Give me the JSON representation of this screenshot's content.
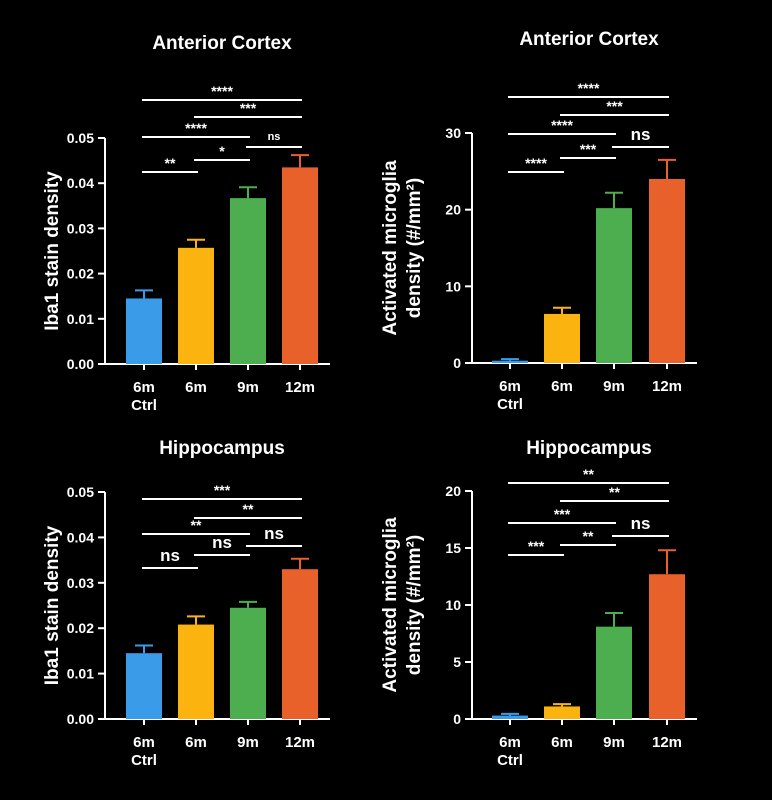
{
  "colors": {
    "ctrl": "#3a9be8",
    "m6": "#fbb40f",
    "m9": "#4cae4f",
    "m12": "#e8602a"
  },
  "chart_data": [
    {
      "type": "bar",
      "title": "Anterior Cortex",
      "ylabel": [
        "Iba1 stain density"
      ],
      "categories": [
        [
          "6m",
          "Ctrl"
        ],
        [
          "6m"
        ],
        [
          "9m"
        ],
        [
          "12m"
        ]
      ],
      "values": [
        0.0145,
        0.0257,
        0.0367,
        0.0435
      ],
      "errors": [
        0.0018,
        0.0018,
        0.0024,
        0.0027
      ],
      "ylim": [
        0,
        0.05
      ],
      "yticks": [
        0.0,
        0.01,
        0.02,
        0.03,
        0.04,
        0.05
      ],
      "ytick_labels": [
        "0.00",
        "0.01",
        "0.02",
        "0.03",
        "0.04",
        "0.05"
      ],
      "significance": [
        {
          "from": 0,
          "to": 1,
          "label": "**"
        },
        {
          "from": 1,
          "to": 2,
          "label": "*"
        },
        {
          "from": 2,
          "to": 3,
          "label": "ns"
        },
        {
          "from": 0,
          "to": 2,
          "label": "****"
        },
        {
          "from": 1,
          "to": 3,
          "label": "***"
        },
        {
          "from": 0,
          "to": 3,
          "label": "****"
        }
      ]
    },
    {
      "type": "bar",
      "title": "Anterior Cortex",
      "ylabel": [
        "Activated microglia",
        "density (#/mm²)"
      ],
      "categories": [
        [
          "6m",
          "Ctrl"
        ],
        [
          "6m"
        ],
        [
          "9m"
        ],
        [
          "12m"
        ]
      ],
      "values": [
        0.3,
        6.4,
        20.2,
        24.0
      ],
      "errors": [
        0.2,
        0.8,
        2.0,
        2.5
      ],
      "ylim": [
        0,
        30
      ],
      "yticks": [
        0,
        10,
        20,
        30
      ],
      "ytick_labels": [
        "0",
        "10",
        "20",
        "30"
      ],
      "significance": [
        {
          "from": 0,
          "to": 1,
          "label": "****"
        },
        {
          "from": 1,
          "to": 2,
          "label": "***"
        },
        {
          "from": 2,
          "to": 3,
          "label": "ns"
        },
        {
          "from": 0,
          "to": 2,
          "label": "****"
        },
        {
          "from": 1,
          "to": 3,
          "label": "***"
        },
        {
          "from": 0,
          "to": 3,
          "label": "****"
        }
      ]
    },
    {
      "type": "bar",
      "title": "Hippocampus",
      "ylabel": [
        "Iba1 stain density"
      ],
      "categories": [
        [
          "6m",
          "Ctrl"
        ],
        [
          "6m"
        ],
        [
          "9m"
        ],
        [
          "12m"
        ]
      ],
      "values": [
        0.0145,
        0.0208,
        0.0245,
        0.033
      ],
      "errors": [
        0.0017,
        0.0018,
        0.0013,
        0.0023
      ],
      "ylim": [
        0,
        0.05
      ],
      "yticks": [
        0.0,
        0.01,
        0.02,
        0.03,
        0.04,
        0.05
      ],
      "ytick_labels": [
        "0.00",
        "0.01",
        "0.02",
        "0.03",
        "0.04",
        "0.05"
      ],
      "significance": [
        {
          "from": 0,
          "to": 1,
          "label": "ns"
        },
        {
          "from": 1,
          "to": 2,
          "label": "ns"
        },
        {
          "from": 2,
          "to": 3,
          "label": "ns"
        },
        {
          "from": 0,
          "to": 2,
          "label": "**"
        },
        {
          "from": 1,
          "to": 3,
          "label": "**"
        },
        {
          "from": 0,
          "to": 3,
          "label": "***"
        }
      ]
    },
    {
      "type": "bar",
      "title": "Hippocampus",
      "ylabel": [
        "Activated microglia",
        "density (#/mm²)"
      ],
      "categories": [
        [
          "6m",
          "Ctrl"
        ],
        [
          "6m"
        ],
        [
          "9m"
        ],
        [
          "12m"
        ]
      ],
      "values": [
        0.3,
        1.1,
        8.1,
        12.7
      ],
      "errors": [
        0.15,
        0.2,
        1.2,
        2.1
      ],
      "ylim": [
        0,
        20
      ],
      "yticks": [
        0,
        5,
        10,
        15,
        20
      ],
      "ytick_labels": [
        "0",
        "5",
        "10",
        "15",
        "20"
      ],
      "significance": [
        {
          "from": 0,
          "to": 1,
          "label": "***"
        },
        {
          "from": 1,
          "to": 2,
          "label": "**"
        },
        {
          "from": 2,
          "to": 3,
          "label": "ns"
        },
        {
          "from": 0,
          "to": 2,
          "label": "***"
        },
        {
          "from": 1,
          "to": 3,
          "label": "**"
        },
        {
          "from": 0,
          "to": 3,
          "label": "**"
        }
      ]
    }
  ]
}
